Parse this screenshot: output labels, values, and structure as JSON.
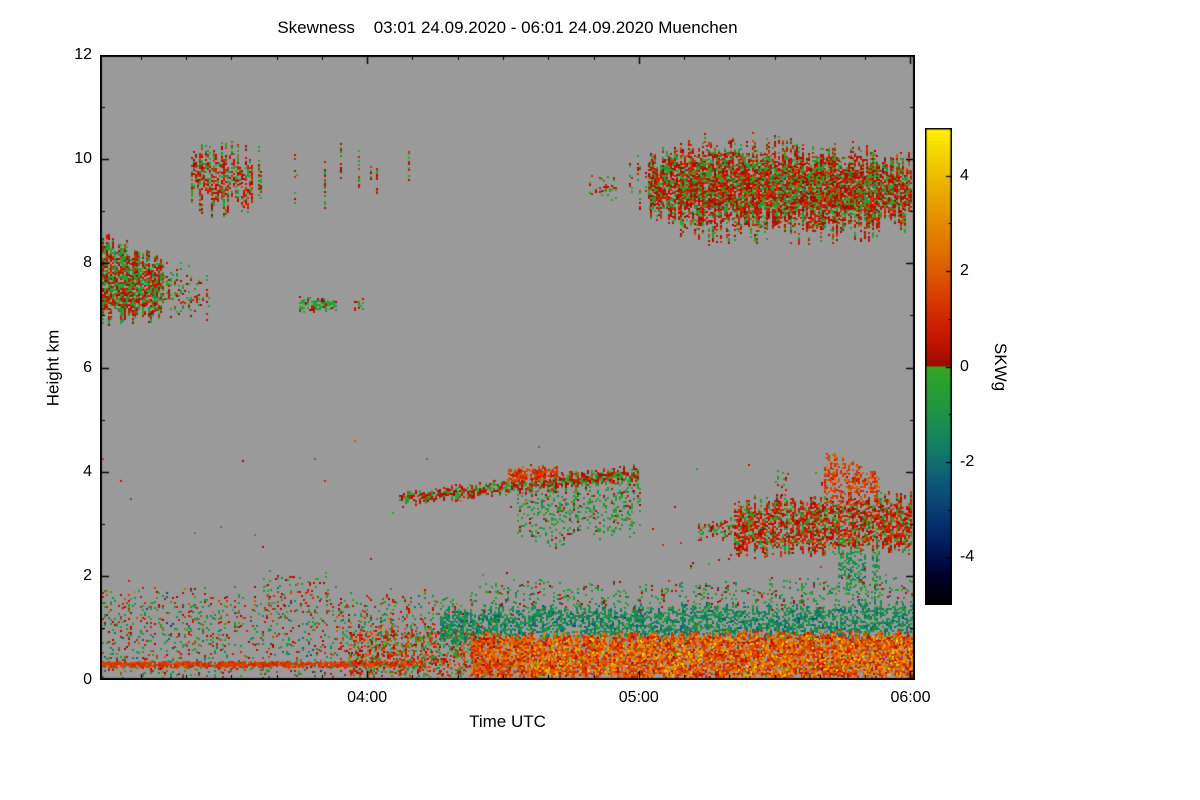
{
  "chart_data": {
    "type": "heatmap",
    "title": "Skewness    03:01 24.09.2020 - 06:01 24.09.2020 Muenchen",
    "xlabel": "Time UTC",
    "ylabel": "Height km",
    "background_color": "#9a9a9a",
    "x_axis": {
      "start_label": "03:01",
      "end_label": "06:01",
      "range_minutes": [
        0,
        180
      ],
      "major_ticks": [
        {
          "minute": 59,
          "label": "04:00"
        },
        {
          "minute": 119,
          "label": "05:00"
        },
        {
          "minute": 179,
          "label": "06:00"
        }
      ],
      "minor_step_minutes": 10
    },
    "y_axis": {
      "range_km": [
        0,
        12
      ],
      "major_ticks": [
        0,
        2,
        4,
        6,
        8,
        10,
        12
      ],
      "minor_step_km": 1
    },
    "colorbar": {
      "label": "SKWg",
      "range": [
        -5,
        5
      ],
      "major_ticks": [
        4,
        2,
        0,
        -2,
        -4
      ],
      "minor_step": 1,
      "stops": [
        [
          0.0,
          "#000000"
        ],
        [
          0.06,
          "#000028"
        ],
        [
          0.1,
          "#00104e"
        ],
        [
          0.17,
          "#063070"
        ],
        [
          0.25,
          "#0c5577"
        ],
        [
          0.32,
          "#117a6a"
        ],
        [
          0.4,
          "#1d9448"
        ],
        [
          0.47,
          "#2ba12c"
        ],
        [
          0.499,
          "#3aa422"
        ],
        [
          0.501,
          "#9c0a00"
        ],
        [
          0.55,
          "#c01400"
        ],
        [
          0.62,
          "#d43000"
        ],
        [
          0.7,
          "#dd5c00"
        ],
        [
          0.78,
          "#e28200"
        ],
        [
          0.86,
          "#e9a800"
        ],
        [
          0.93,
          "#f2cc00"
        ],
        [
          1.0,
          "#fff200"
        ]
      ]
    },
    "features": [
      {
        "name": "left-cloud-7-8.5km",
        "t": [
          0,
          14
        ],
        "hb": [
          7.0,
          7.05
        ],
        "ht": [
          8.5,
          7.95
        ],
        "density": 0.8,
        "mean": 0.1,
        "spread": 1.1,
        "gate": 1,
        "jitter": 0.2
      },
      {
        "name": "left-cloud-tail",
        "t": [
          12,
          24
        ],
        "hb": [
          7.1,
          7.15
        ],
        "ht": [
          8.0,
          7.6
        ],
        "density": 0.3,
        "mean": 0.0,
        "spread": 1.0,
        "gate": 0.8,
        "jitter": 0.25
      },
      {
        "name": "thin-streak-7.2km",
        "t": [
          44,
          52
        ],
        "hb": [
          7.1,
          7.12
        ],
        "ht": [
          7.32,
          7.28
        ],
        "density": 0.7,
        "mean": -0.3,
        "spread": 0.8,
        "gate": 0.9,
        "jitter": 0.05
      },
      {
        "name": "speck-7.2km",
        "t": [
          56,
          58
        ],
        "hb": [
          7.15,
          7.15
        ],
        "ht": [
          7.3,
          7.3
        ],
        "density": 0.5,
        "mean": 0.2,
        "spread": 0.8,
        "gate": 1,
        "jitter": 0.05
      },
      {
        "name": "upper-streaks",
        "t": [
          11,
          88
        ],
        "hb": [
          9.25,
          9.35
        ],
        "ht": [
          10.15,
          9.95
        ],
        "density": 0.5,
        "mean": 0.2,
        "spread": 1.0,
        "gate": 0.38,
        "jitter": 0.35
      },
      {
        "name": "upper-streaks-left-clump",
        "t": [
          20,
          34
        ],
        "hb": [
          9.15,
          9.2
        ],
        "ht": [
          10.2,
          10.1
        ],
        "density": 0.55,
        "mean": 0.3,
        "spread": 1.1,
        "gate": 0.75,
        "jitter": 0.3
      },
      {
        "name": "upper-speck-0440",
        "t": [
          108,
          114
        ],
        "hb": [
          9.3,
          9.3
        ],
        "ht": [
          9.65,
          9.6
        ],
        "density": 0.3,
        "mean": 0.1,
        "spread": 0.9,
        "gate": 0.55,
        "jitter": 0.1
      },
      {
        "name": "big-upper-cloud-lead",
        "t": [
          116,
          125
        ],
        "hb": [
          9.35,
          9.15
        ],
        "ht": [
          9.9,
          10.0
        ],
        "density": 0.3,
        "mean": 0.2,
        "spread": 1.0,
        "gate": 0.55,
        "jitter": 0.25
      },
      {
        "name": "big-upper-cloud-core",
        "t": [
          121,
          179
        ],
        "hb": [
          9.0,
          8.85
        ],
        "ht": [
          10.0,
          9.9
        ],
        "density": 0.8,
        "mean": 0.25,
        "spread": 1.05,
        "gate": 1,
        "jitter": 0.25
      },
      {
        "name": "big-upper-cloud-extent",
        "t": [
          128,
          172
        ],
        "hb": [
          8.6,
          8.72
        ],
        "ht": [
          10.3,
          10.1
        ],
        "density": 0.5,
        "mean": 0.25,
        "spread": 1.05,
        "gate": 0.95,
        "jitter": 0.3
      },
      {
        "name": "midlevel-slant-band",
        "t": [
          66,
          119
        ],
        "hb": [
          3.42,
          3.85
        ],
        "ht": [
          3.58,
          4.08
        ],
        "density": 0.85,
        "mean": 0.15,
        "spread": 1.0,
        "gate": 1,
        "jitter": 0.08
      },
      {
        "name": "midlevel-virga",
        "t": [
          92,
          119
        ],
        "hb": [
          2.7,
          3.0
        ],
        "ht": [
          3.5,
          3.85
        ],
        "density": 0.28,
        "mean": -0.5,
        "spread": 0.9,
        "gate": 0.85,
        "jitter": 0.25
      },
      {
        "name": "midlevel-red-core",
        "t": [
          90,
          101
        ],
        "hb": [
          3.82,
          3.95
        ],
        "ht": [
          4.02,
          4.1
        ],
        "density": 0.75,
        "mean": 1.3,
        "spread": 0.7,
        "gate": 1,
        "jitter": 0.06
      },
      {
        "name": "right-small-patch-2.8km",
        "t": [
          132,
          140
        ],
        "hb": [
          2.7,
          2.72
        ],
        "ht": [
          3.0,
          3.05
        ],
        "density": 0.5,
        "mean": 0.2,
        "spread": 1.0,
        "gate": 0.8,
        "jitter": 0.1
      },
      {
        "name": "right-mid-cloud",
        "t": [
          140,
          179
        ],
        "hb": [
          2.5,
          2.55
        ],
        "ht": [
          3.4,
          3.5
        ],
        "density": 0.72,
        "mean": 0.45,
        "spread": 1.2,
        "gate": 0.95,
        "jitter": 0.15
      },
      {
        "name": "right-mid-cloud-red-top",
        "t": [
          160,
          172
        ],
        "hb": [
          3.45,
          3.5
        ],
        "ht": [
          4.25,
          4.05
        ],
        "density": 0.5,
        "mean": 1.5,
        "spread": 0.9,
        "gate": 0.8,
        "jitter": 0.15
      },
      {
        "name": "right-plume-low",
        "t": [
          163,
          172
        ],
        "hb": [
          1.6,
          1.7
        ],
        "ht": [
          2.55,
          2.6
        ],
        "density": 0.4,
        "mean": -1.0,
        "spread": 0.9,
        "gate": 0.7,
        "jitter": 0.2
      },
      {
        "name": "sparse-specks-4km",
        "t": [
          149,
          161
        ],
        "hb": [
          3.6,
          3.65
        ],
        "ht": [
          4.1,
          3.95
        ],
        "density": 0.12,
        "mean": 0.3,
        "spread": 1.0,
        "gate": 0.5,
        "jitter": 0.1
      },
      {
        "name": "sparse-specks-2.3km",
        "t": [
          125,
          137
        ],
        "hb": [
          2.15,
          2.2
        ],
        "ht": [
          2.45,
          2.4
        ],
        "density": 0.15,
        "mean": 0.2,
        "spread": 1.0,
        "gate": 0.5,
        "jitter": 0.1
      },
      {
        "name": "bl-sparse-left",
        "t": [
          0,
          82
        ],
        "hb": [
          0.08,
          0.08
        ],
        "ht": [
          1.7,
          1.6
        ],
        "density": 0.16,
        "mean": -0.1,
        "spread": 1.8,
        "gate": 1,
        "jitter": 0.15
      },
      {
        "name": "bl-bump-2km",
        "t": [
          36,
          52
        ],
        "hb": [
          1.5,
          1.5
        ],
        "ht": [
          2.05,
          1.95
        ],
        "density": 0.12,
        "mean": 0.2,
        "spread": 1.5,
        "gate": 0.7,
        "jitter": 0.15
      },
      {
        "name": "bl-red-line",
        "t": [
          0,
          72
        ],
        "hb": [
          0.26,
          0.27
        ],
        "ht": [
          0.35,
          0.36
        ],
        "density": 0.95,
        "mean": 1.4,
        "spread": 0.5,
        "gate": 1,
        "jitter": 0.02
      },
      {
        "name": "bl-transition",
        "t": [
          55,
          85
        ],
        "hb": [
          0.08,
          0.08
        ],
        "ht": [
          0.95,
          1.0
        ],
        "density": 0.45,
        "mean": 0.6,
        "spread": 1.6,
        "gate": 1,
        "jitter": 0.1
      },
      {
        "name": "bl-green-band",
        "t": [
          75,
          180
        ],
        "hb": [
          0.8,
          0.85
        ],
        "ht": [
          1.32,
          1.45
        ],
        "density": 0.6,
        "mean": -1.4,
        "spread": 0.9,
        "gate": 1,
        "jitter": 0.12
      },
      {
        "name": "bl-warm-layer",
        "t": [
          82,
          180
        ],
        "hb": [
          0.06,
          0.06
        ],
        "ht": [
          0.85,
          0.9
        ],
        "density": 0.85,
        "mean": 1.7,
        "spread": 1.4,
        "gate": 1,
        "jitter": 0.08
      },
      {
        "name": "bl-top-speckle",
        "t": [
          82,
          180
        ],
        "hb": [
          1.35,
          1.5
        ],
        "ht": [
          1.8,
          1.9
        ],
        "density": 0.17,
        "mean": -0.6,
        "spread": 1.2,
        "gate": 1,
        "jitter": 0.15
      },
      {
        "name": "bl-yellow-specks",
        "t": [
          95,
          180
        ],
        "hb": [
          0.1,
          0.1
        ],
        "ht": [
          0.8,
          0.85
        ],
        "density": 0.15,
        "mean": 3.4,
        "spread": 1.0,
        "gate": 1,
        "jitter": 0.05
      },
      {
        "name": "stray-specks-midlevels",
        "t": [
          0,
          180
        ],
        "hb": [
          1.9,
          1.9
        ],
        "ht": [
          4.6,
          4.6
        ],
        "density": 0.0015,
        "mean": 0.5,
        "spread": 1.6,
        "gate": 1,
        "jitter": 0
      }
    ]
  }
}
